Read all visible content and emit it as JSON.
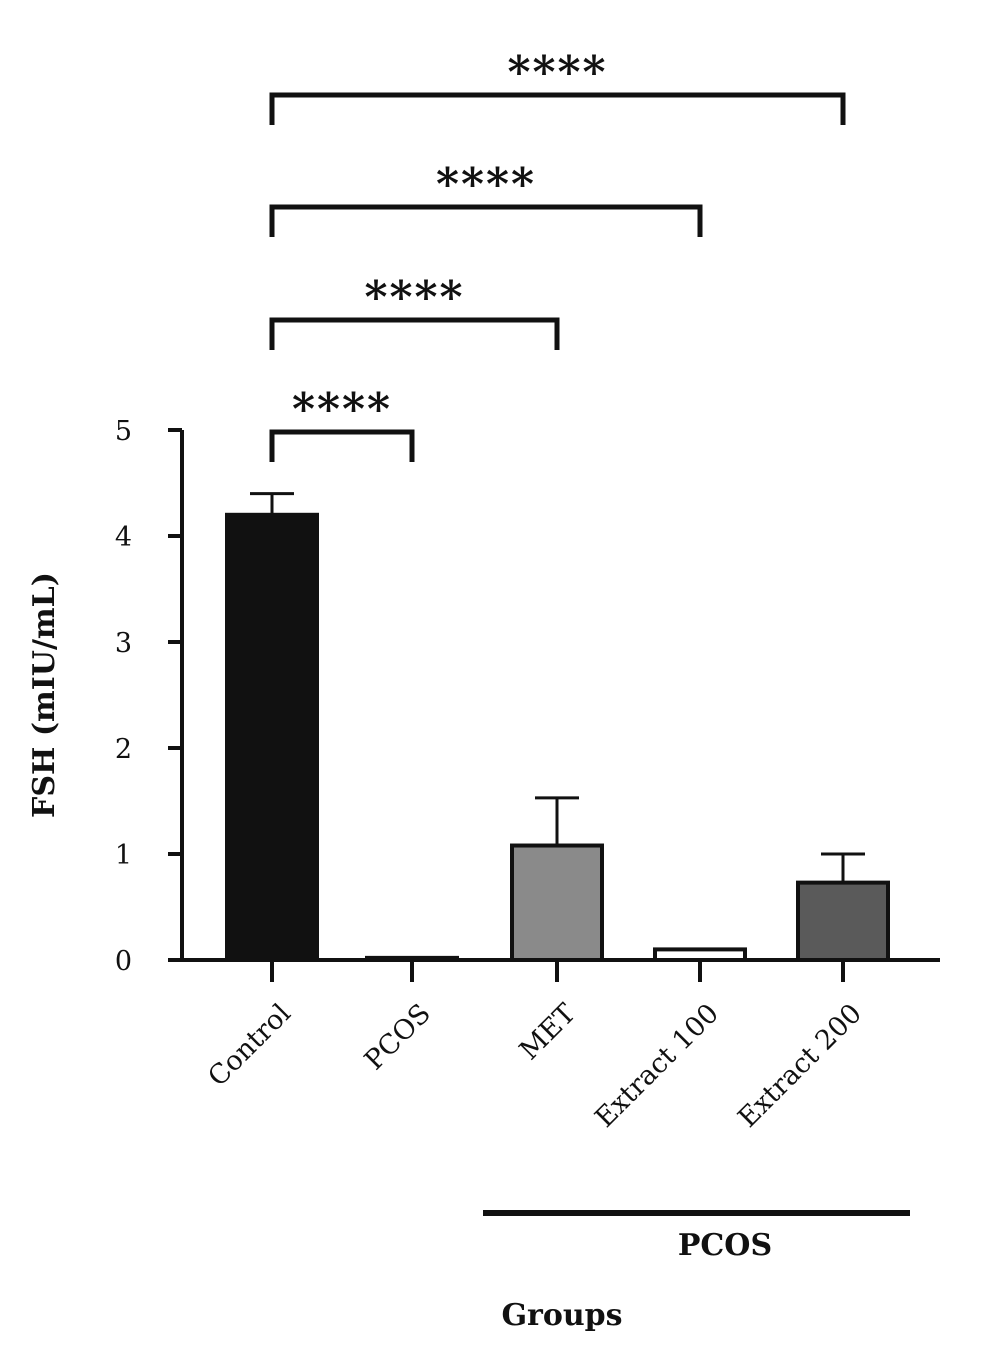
{
  "chart_data": {
    "type": "bar",
    "title": "",
    "ylabel": "FSH (mIU/mL)",
    "xlabel": "Groups",
    "ylim": [
      0,
      5
    ],
    "yticks": [
      0,
      1,
      2,
      3,
      4,
      5
    ],
    "categories": [
      "Control",
      "PCOS",
      "MET",
      "Extract 100",
      "Extract 200"
    ],
    "values": [
      4.2,
      0.02,
      1.08,
      0.1,
      0.73
    ],
    "errors": [
      0.2,
      0.02,
      0.45,
      0.02,
      0.27
    ],
    "bar_colors": [
      "#111111",
      "#ffffff",
      "#8a8a8a",
      "#ffffff",
      "#5a5a5a"
    ],
    "group_bracket": {
      "label": "PCOS",
      "from": "MET",
      "to": "Extract 200"
    },
    "significance": [
      {
        "from": "Control",
        "to": "PCOS",
        "label": "****"
      },
      {
        "from": "Control",
        "to": "MET",
        "label": "****"
      },
      {
        "from": "Control",
        "to": "Extract 100",
        "label": "****"
      },
      {
        "from": "Control",
        "to": "Extract 200",
        "label": "****"
      }
    ],
    "grid": false,
    "legend": "none"
  }
}
